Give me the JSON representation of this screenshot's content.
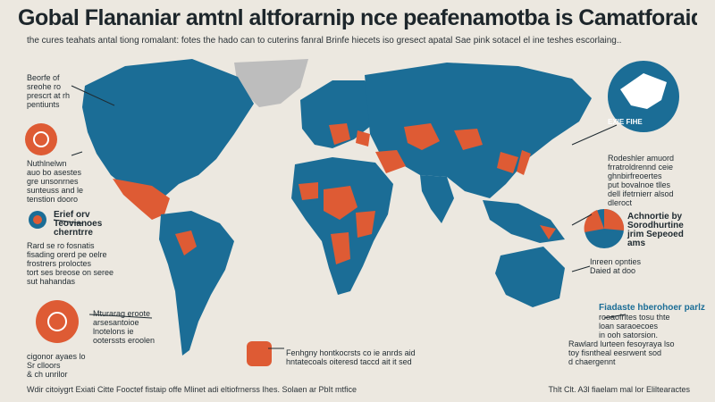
{
  "header": {
    "title": "Gobal Flananiar amtnl altforarnip nce peafenamotba is Camatforaid lifoors",
    "subtitle": "the cures teahats antal tiong romalant: fotes the hado can to cuterins fanral Brinfe hiecets iso gresect apatal Sae pink sotacel el ine teshes escorlaing.."
  },
  "colors": {
    "background": "#ece8e0",
    "sea_blue": "#1b6d96",
    "highlight": "#de5b34",
    "land_grey": "#bdbdbd",
    "text_dark": "#1f2a30"
  },
  "annotations": {
    "left_1": [
      "Beorfe of",
      "sreohe ro",
      "prescrt at rh",
      "pentiunts"
    ],
    "left_2": [
      "Nuthlnelwn",
      "auo bo asestes",
      "gre unsonrnes",
      "sunteuss and le",
      "tenstion dooro"
    ],
    "left_3": [
      "Erief orv",
      "Teovianoes",
      "cherntrre"
    ],
    "left_4": [
      "Rard se ro fosnatis",
      "fisading orerd pe oelre",
      "frostrers proloctes",
      "tort ses breose on seree",
      "sut hahandas"
    ],
    "left_5": [
      "Mturarag eroote",
      "arsesantoioe",
      "lnotelons ie",
      "ooterssts eroolen"
    ],
    "left_6": [
      "cigonor ayaes lo",
      "Sr clloors",
      "& ch unrilor"
    ],
    "center": [
      "Fenhgny hontkocrsts co ie anrds aid",
      "hntatecoals oiteresd taccd ait it sed"
    ],
    "right_1": [
      "Rodeshler amuord",
      "frratroldrennd ceie",
      "ghnbirfreoertes",
      "put bovalnoe tlles",
      "dell ifetrnierr alsod",
      "dleroct"
    ],
    "right_2": [
      "Achnortie by",
      "Sorodhurtine",
      "jrim Sepeoed",
      "ams"
    ],
    "right_3": [
      "Inreen opnties",
      "Daied at doo"
    ],
    "right_4": [
      "Fiadaste hberohoer parlz",
      "rooaofrltes tosu thte",
      "loan saraoecoes",
      "in ooh satorsion."
    ],
    "right_5": [
      "Rawlard lurteen fesoyraya lso",
      "toy fisntheal eesrwent sod",
      "d chaergennt"
    ]
  },
  "badges": {
    "top_right": "EXIE FIHE"
  },
  "footer": {
    "left": "Wdir citoiygrt Exiati Citte Fooctef fistaip offe Mlinet adi eltiofrnerss Ihes. Solaen ar PbIt mtfice",
    "right": "Thlt Clt. A3l fiaelam mal lor Eliltearactes"
  }
}
